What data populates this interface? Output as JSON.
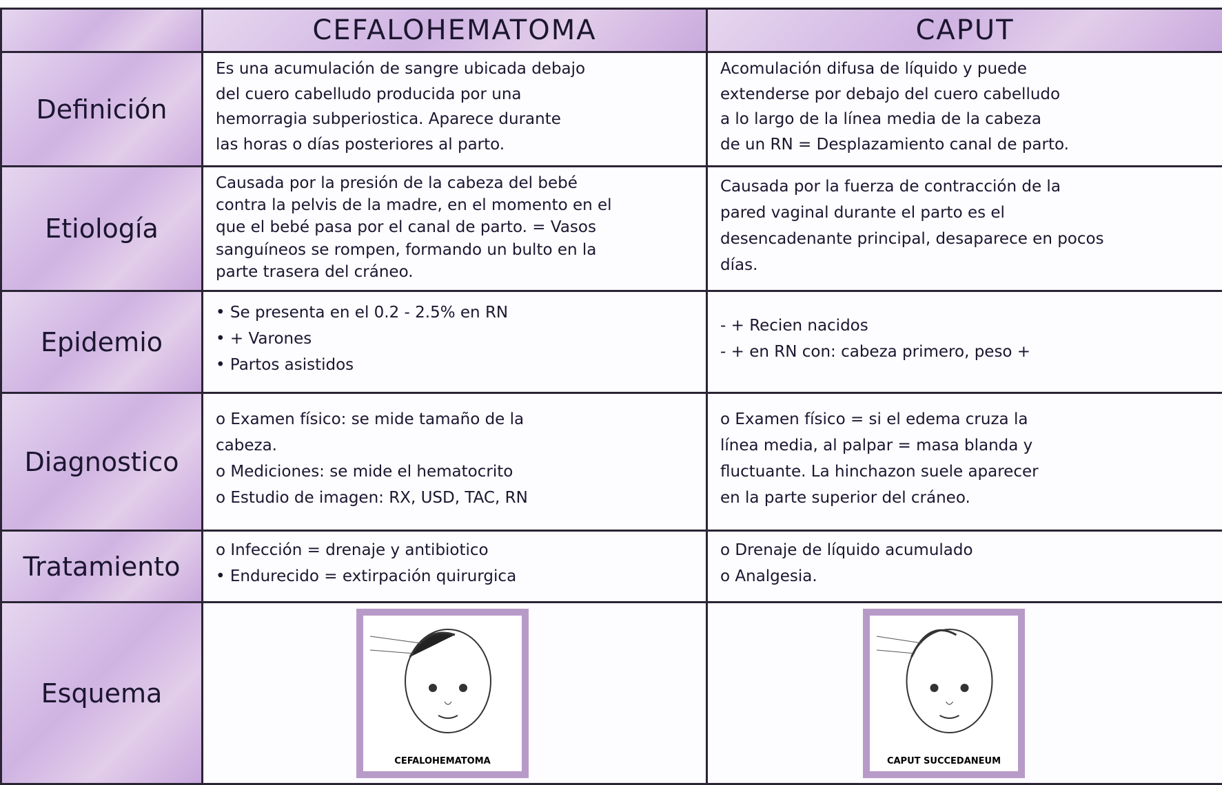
{
  "header": {
    "columns": [
      "CEFALOHEMATOMA",
      "CAPUT"
    ]
  },
  "rows": [
    {
      "label": "Definición",
      "cells": [
        [
          "Es una acumulación de sangre ubicada debajo",
          "del cuero cabelludo producida por una",
          "hemorragia subperiostica. Aparece durante",
          "las horas o días posteriores al parto."
        ],
        [
          "Acomulación difusa de líquido y puede",
          "extenderse por debajo del cuero cabelludo",
          "a lo largo de la línea media de la cabeza",
          "de un RN = Desplazamiento canal de parto."
        ]
      ]
    },
    {
      "label": "Etiología",
      "cells": [
        [
          "Causada por la presión de la cabeza del bebé",
          "contra la pelvis de la madre, en el momento en el",
          "que el bebé pasa por el canal de parto. = Vasos",
          "sanguíneos se rompen, formando un bulto en la",
          "parte trasera del cráneo."
        ],
        [
          "Causada por la fuerza de contracción de la",
          "pared vaginal durante el parto es el",
          "desencadenante principal, desaparece en pocos",
          "días."
        ]
      ]
    },
    {
      "label": "Epidemio",
      "cells": [
        [
          "• Se presenta en el 0.2 - 2.5% en RN",
          "• + Varones",
          "• Partos asistidos"
        ],
        [
          "- + Recien nacidos",
          "- + en RN con: cabeza primero, peso +"
        ]
      ]
    },
    {
      "label": "Diagnostico",
      "cells": [
        [
          "o Examen físico: se mide tamaño de la",
          "cabeza.",
          "o Mediciones: se mide el hematocrito",
          "o Estudio de imagen: RX, USD, TAC, RN"
        ],
        [
          "o Examen físico = si el edema cruza la",
          "línea media, al palpar = masa blanda y",
          "fluctuante. La hinchazon suele aparecer",
          "en la parte superior del cráneo."
        ]
      ]
    },
    {
      "label": "Tratamiento",
      "cells": [
        [
          "o Infección = drenaje y antibiotico",
          "• Endurecido = extirpación quirurgica"
        ],
        [
          "o Drenaje de líquido acumulado",
          "o Analgesia."
        ]
      ]
    }
  ],
  "esquema": {
    "label": "Esquema",
    "captions": [
      "CEFALOHEMATOMA",
      "CAPUT SUCCEDANEUM"
    ]
  }
}
